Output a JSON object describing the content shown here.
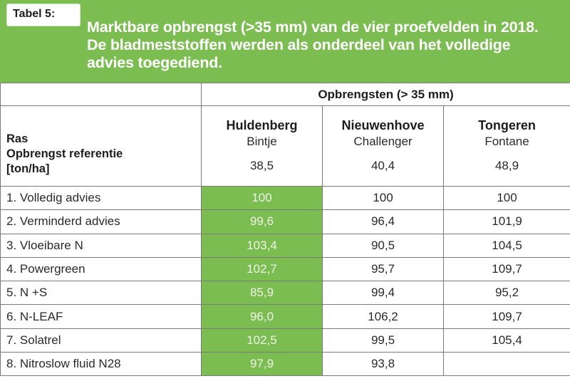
{
  "tag_label": "Tabel 5:",
  "title": "Marktbare opbrengst (>35 mm) van de vier proefvelden in 2018. De bladmeststoffen werden als onderdeel van het volledige advies toegediend.",
  "group_header": "Opbrengsten (> 35 mm)",
  "row_header": {
    "line1": "Ras",
    "line2": "Opbrengst referentie",
    "line3": "[ton/ha]"
  },
  "locations": [
    {
      "name": "Huldenberg",
      "variety": "Bintje",
      "reference": "38,5"
    },
    {
      "name": "Nieuwenhove",
      "variety": "Challenger",
      "reference": "40,4"
    },
    {
      "name": "Tongeren",
      "variety": "Fontane",
      "reference": "48,9"
    }
  ],
  "rows": [
    {
      "label": "1. Volledig advies",
      "values": [
        "100",
        "100",
        "100"
      ]
    },
    {
      "label": "2. Verminderd advies",
      "values": [
        "99,6",
        "96,4",
        "101,9"
      ]
    },
    {
      "label": "3. Vloeibare N",
      "values": [
        "103,4",
        "90,5",
        "104,5"
      ]
    },
    {
      "label": "4. Powergreen",
      "values": [
        "102,7",
        "95,7",
        "109,7"
      ]
    },
    {
      "label": "5. N +S",
      "values": [
        "85,9",
        "99,4",
        "95,2"
      ]
    },
    {
      "label": "6. N-LEAF",
      "values": [
        "96,0",
        "106,2",
        "109,7"
      ]
    },
    {
      "label": "7. Solatrel",
      "values": [
        "102,5",
        "99,5",
        "105,4"
      ]
    },
    {
      "label": "8. Nitroslow fluid N28",
      "values": [
        "97,9",
        "93,8",
        ""
      ]
    }
  ],
  "colors": {
    "header_green": "#7cbd52",
    "highlight_column": "#7cbd52"
  }
}
